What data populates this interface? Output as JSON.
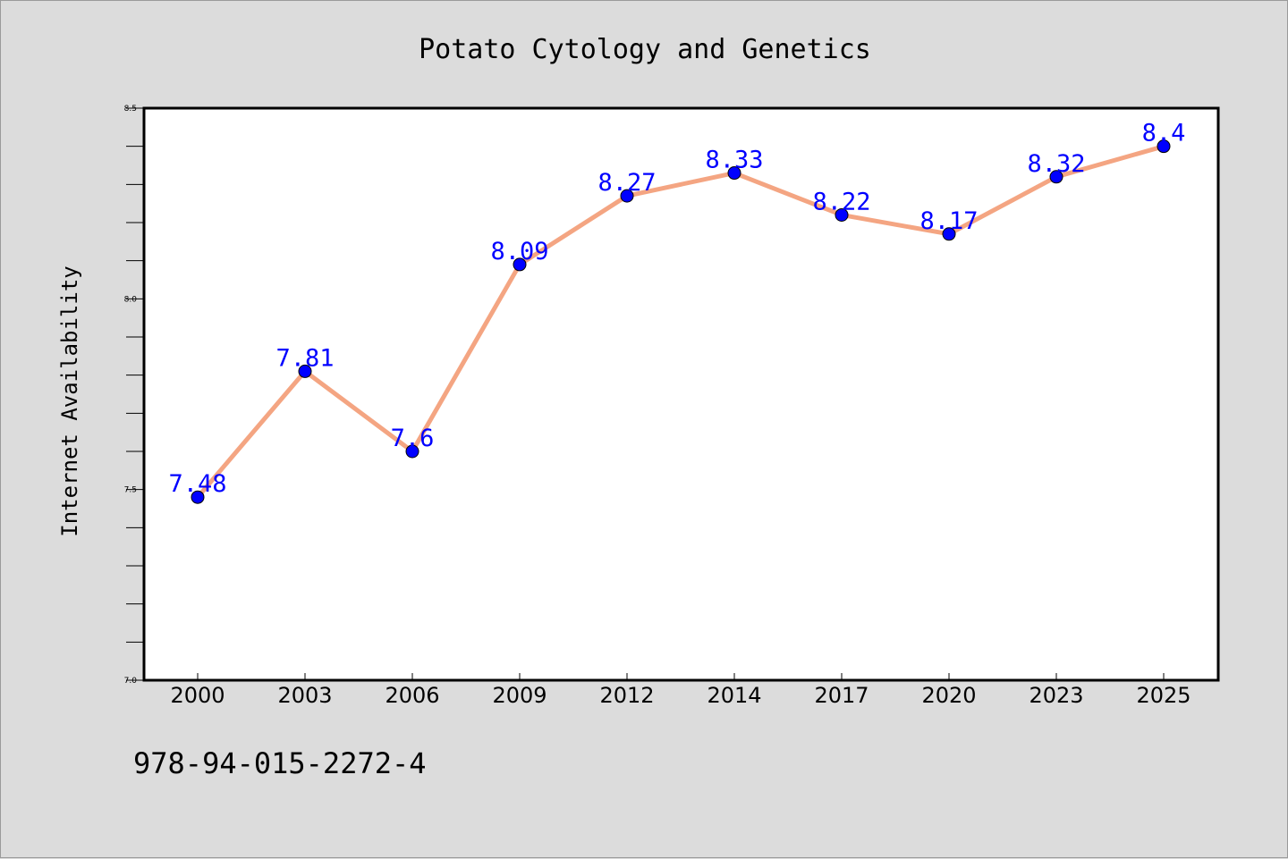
{
  "chart_data": {
    "type": "line",
    "title": "Potato Cytology and Genetics",
    "xlabel": "",
    "ylabel": "Internet Availability",
    "categories": [
      "2000",
      "2003",
      "2006",
      "2009",
      "2012",
      "2014",
      "2017",
      "2020",
      "2023",
      "2025"
    ],
    "series": [
      {
        "values": [
          7.48,
          7.81,
          7.6,
          8.09,
          8.27,
          8.33,
          8.22,
          8.17,
          8.32,
          8.4
        ],
        "data_labels": [
          "7.48",
          "7.81",
          "7.6",
          "8.09",
          "8.27",
          "8.33",
          "8.22",
          "8.17",
          "8.32",
          "8.4"
        ],
        "line_color": "#f4a582",
        "marker_color": "#0000ff",
        "label_color": "#0000ff"
      }
    ],
    "ylim": [
      7.0,
      8.5
    ],
    "y_ticks": [
      "7.0",
      "7.5",
      "8.0",
      "8.5"
    ],
    "grid": false,
    "legend": "none"
  },
  "footer": {
    "code": "978-94-015-2272-4"
  },
  "colors": {
    "background": "#dcdcdc",
    "plot_background": "#ffffff",
    "axis": "#000000"
  }
}
